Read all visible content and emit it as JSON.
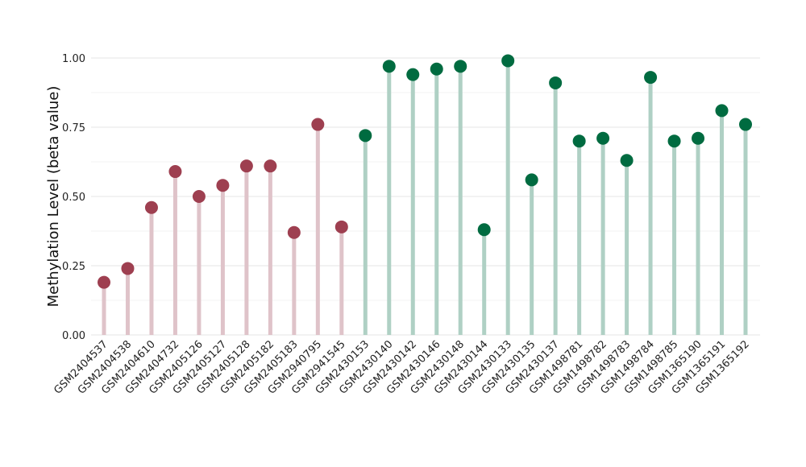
{
  "chart_data": {
    "type": "lollipop",
    "title": "",
    "xlabel": "",
    "ylabel": "Methylation Level (beta value)",
    "ylim": [
      0,
      1
    ],
    "yticks": [
      "0.00",
      "0.25",
      "0.50",
      "0.75",
      "1.00"
    ],
    "grid": true,
    "colors": {
      "groupA": "#9e3f50",
      "groupA_stem": "#dfc3c9",
      "groupB": "#006b40",
      "groupB_stem": "#afd0c4"
    },
    "categories": [
      "GSM2404537",
      "GSM2404538",
      "GSM2404610",
      "GSM2404732",
      "GSM2405126",
      "GSM2405127",
      "GSM2405128",
      "GSM2405182",
      "GSM2405183",
      "GSM2940795",
      "GSM2941545",
      "GSM2430153",
      "GSM2430140",
      "GSM2430142",
      "GSM2430146",
      "GSM2430148",
      "GSM2430144",
      "GSM2430133",
      "GSM2430135",
      "GSM2430137",
      "GSM1498781",
      "GSM1498782",
      "GSM1498783",
      "GSM1498784",
      "GSM1498785",
      "GSM1365190",
      "GSM1365191",
      "GSM1365192"
    ],
    "values": [
      0.19,
      0.24,
      0.46,
      0.59,
      0.5,
      0.54,
      0.61,
      0.61,
      0.37,
      0.76,
      0.39,
      0.72,
      0.97,
      0.94,
      0.96,
      0.97,
      0.38,
      0.99,
      0.56,
      0.91,
      0.7,
      0.71,
      0.63,
      0.93,
      0.7,
      0.71,
      0.81,
      0.76
    ],
    "groups": [
      "A",
      "A",
      "A",
      "A",
      "A",
      "A",
      "A",
      "A",
      "A",
      "A",
      "A",
      "B",
      "B",
      "B",
      "B",
      "B",
      "B",
      "B",
      "B",
      "B",
      "B",
      "B",
      "B",
      "B",
      "B",
      "B",
      "B",
      "B"
    ]
  }
}
